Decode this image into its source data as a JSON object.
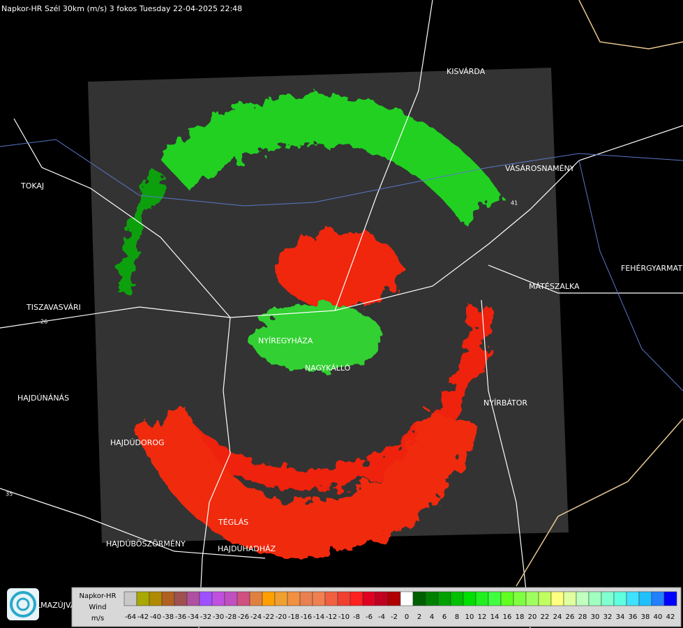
{
  "header": {
    "title": "Napkor-HR Szél 30km (m/s) 3 fokos Tuesday 22-04-2025 22:48"
  },
  "places": [
    "KISVÁRDA",
    "VÁSÁROSNAMÉNY",
    "TOKAJ",
    "TISZAVASVÁRI",
    "MÁTÉSZALKA",
    "FEHÉRGYARMAT",
    "NYÍREGYHÁZA",
    "NAGYKÁLLÓ",
    "NYÍRBÁTOR",
    "HAJDÚNÁNÁS",
    "HAJDÚDOROG",
    "TÉGLÁS",
    "HAJDÚBÖSZÖRMÉNY",
    "HAJDÚHADHÁZ",
    "LMAZÚJVÁR"
  ],
  "roads": [
    "26",
    "41",
    "35"
  ],
  "legend": {
    "title": [
      "Napkor-HR",
      "Wind",
      "m/s"
    ],
    "bins": [
      {
        "value": -64,
        "color": "#c8c8c8"
      },
      {
        "value": -42,
        "color": "#a8a800"
      },
      {
        "value": -40,
        "color": "#b08a00"
      },
      {
        "value": -38,
        "color": "#b06020"
      },
      {
        "value": -36,
        "color": "#a05050"
      },
      {
        "value": -34,
        "color": "#b050a0"
      },
      {
        "value": -32,
        "color": "#a050ff"
      },
      {
        "value": -30,
        "color": "#c050e0"
      },
      {
        "value": -28,
        "color": "#c050c0"
      },
      {
        "value": -26,
        "color": "#d05080"
      },
      {
        "value": -24,
        "color": "#e08040"
      },
      {
        "value": -22,
        "color": "#ffa000"
      },
      {
        "value": -20,
        "color": "#f0a030"
      },
      {
        "value": -18,
        "color": "#f09040"
      },
      {
        "value": -16,
        "color": "#e88050"
      },
      {
        "value": -14,
        "color": "#f08050"
      },
      {
        "value": -12,
        "color": "#f06040"
      },
      {
        "value": -10,
        "color": "#f04030"
      },
      {
        "value": -8,
        "color": "#ff2020"
      },
      {
        "value": -6,
        "color": "#e00020"
      },
      {
        "value": -4,
        "color": "#c00020"
      },
      {
        "value": -2,
        "color": "#b00000"
      },
      {
        "value": 0,
        "color": "#ffffff"
      },
      {
        "value": 2,
        "color": "#006000"
      },
      {
        "value": 4,
        "color": "#008000"
      },
      {
        "value": 6,
        "color": "#00a000"
      },
      {
        "value": 8,
        "color": "#00c000"
      },
      {
        "value": 10,
        "color": "#00e000"
      },
      {
        "value": 12,
        "color": "#20f020"
      },
      {
        "value": 14,
        "color": "#40ff40"
      },
      {
        "value": 16,
        "color": "#60ff20"
      },
      {
        "value": 18,
        "color": "#80ff40"
      },
      {
        "value": 20,
        "color": "#a0ff60"
      },
      {
        "value": 22,
        "color": "#c0ff60"
      },
      {
        "value": 24,
        "color": "#ffff80"
      },
      {
        "value": 26,
        "color": "#e0ffa0"
      },
      {
        "value": 28,
        "color": "#c0ffc0"
      },
      {
        "value": 30,
        "color": "#a0ffc0"
      },
      {
        "value": 32,
        "color": "#80ffd0"
      },
      {
        "value": 34,
        "color": "#60ffe0"
      },
      {
        "value": 36,
        "color": "#40e0ff"
      },
      {
        "value": 38,
        "color": "#20c0ff"
      },
      {
        "value": 40,
        "color": "#2080ff"
      },
      {
        "value": 42,
        "color": "#0000ff"
      }
    ]
  }
}
